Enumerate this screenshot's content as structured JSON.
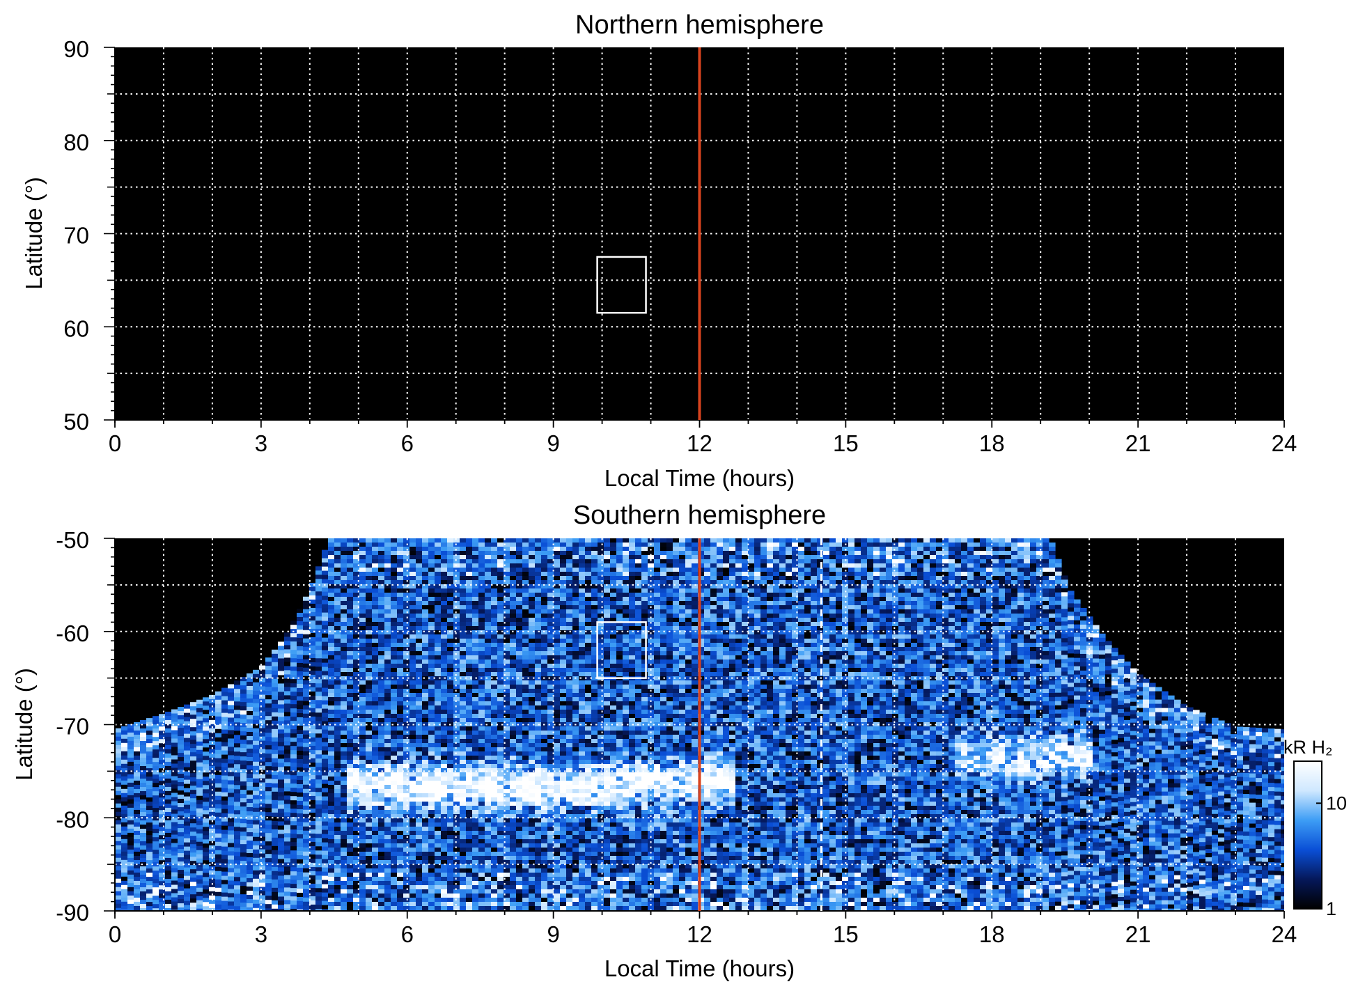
{
  "chart_data": [
    {
      "type": "heatmap",
      "title": "Northern hemisphere",
      "xlabel": "Local Time (hours)",
      "ylabel": "Latitude (°)",
      "xlim": [
        0,
        24
      ],
      "ylim": [
        50,
        90
      ],
      "x_ticks": [
        0,
        3,
        6,
        9,
        12,
        15,
        18,
        21,
        24
      ],
      "y_ticks": [
        50,
        60,
        70,
        80,
        90
      ],
      "grid": true,
      "background_color": "#000000",
      "noon_line": {
        "x": 12,
        "color": "#d8431e"
      },
      "box": {
        "x": [
          9.9,
          10.9
        ],
        "y": [
          61.5,
          67.5
        ],
        "color": "#ffffff"
      },
      "coverage": "no data"
    },
    {
      "type": "heatmap",
      "title": "Southern hemisphere",
      "xlabel": "Local Time (hours)",
      "ylabel": "Latitude (°)",
      "xlim": [
        0,
        24
      ],
      "ylim": [
        -90,
        -50
      ],
      "x_ticks": [
        0,
        3,
        6,
        9,
        12,
        15,
        18,
        21,
        24
      ],
      "y_ticks": [
        -90,
        -80,
        -70,
        -60,
        -50
      ],
      "grid": true,
      "background_color": "#000000",
      "noon_line": {
        "x": 12,
        "color": "#d8431e"
      },
      "dashed_line": {
        "x": 14.5,
        "color": "#ffffff"
      },
      "box": {
        "x": [
          9.9,
          10.9
        ],
        "y": [
          -65,
          -59
        ],
        "color": "#ffffff"
      },
      "coverage_boundary": {
        "x": [
          0,
          1,
          2,
          3,
          3.5,
          4,
          4.4,
          19.2,
          19.6,
          20.3,
          21,
          22,
          23,
          24
        ],
        "y": [
          -70.5,
          -68.8,
          -66.8,
          -63.8,
          -60.5,
          -55.5,
          -50,
          -50,
          -55.5,
          -60.5,
          -64.5,
          -68,
          -70.2,
          -70.5
        ]
      },
      "emission_features": [
        {
          "x": [
            5.5,
            9,
            10.5,
            12
          ],
          "y": [
            -76.5,
            -77,
            -76.5,
            -76
          ],
          "peak_kR": 20
        },
        {
          "x": [
            18,
            19.3
          ],
          "y": [
            -73.5,
            -73.5
          ],
          "peak_kR": 15
        }
      ],
      "colorbar": {
        "label": "kR H₂",
        "scale": "log",
        "range": [
          1,
          25
        ],
        "tick_labels": [
          "1",
          "10"
        ],
        "colors": [
          "#000000",
          "#05185a",
          "#0a4fd6",
          "#3d9df5",
          "#cfe8ff",
          "#ffffff"
        ]
      }
    }
  ]
}
